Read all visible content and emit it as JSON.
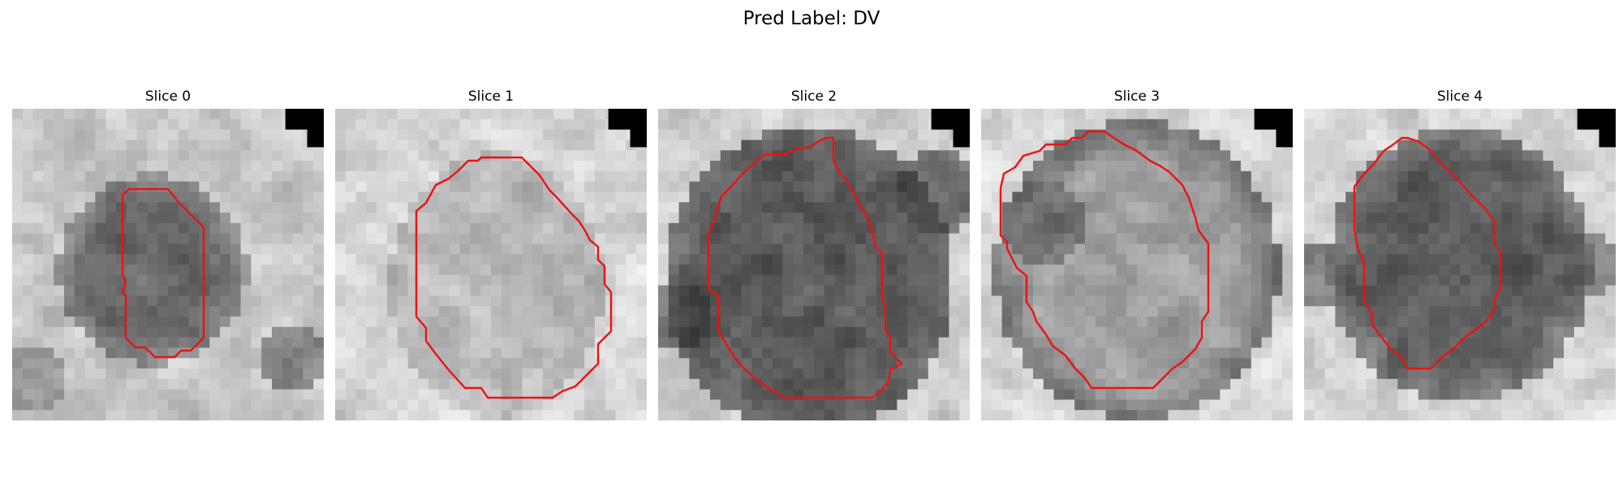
{
  "figure": {
    "title": "Pred Label: DV"
  },
  "panels": [
    {
      "title": "Slice 0",
      "scene": "small dark roughly oval blob left of center, surrounded by lighter tissue; red contour outlines it"
    },
    {
      "title": "Slice 1",
      "scene": "large light-gray rounded region, low contrast with background; red contour outlines it"
    },
    {
      "title": "Slice 2",
      "scene": "large dark rounded region filling most of the panel; red contour outlines it"
    },
    {
      "title": "Slice 3",
      "scene": "large medium-gray rounded region; red contour outlines it"
    },
    {
      "title": "Slice 4",
      "scene": "dark rounded region centered in the panel; red contour outlines it"
    }
  ],
  "contour_color": "#ee1111",
  "corner_block_color": "#000000"
}
